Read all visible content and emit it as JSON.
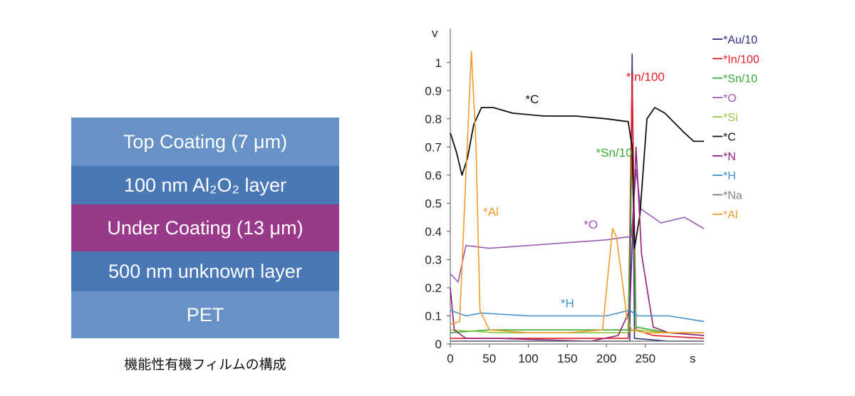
{
  "diagram": {
    "layers": [
      {
        "label": "Top Coating (7 μm)",
        "color": "#6792c6"
      },
      {
        "label": "100 nm Al₂O₂ layer",
        "color": "#4a78b7"
      },
      {
        "label": "Under Coating (13 μm)",
        "color": "#99398a"
      },
      {
        "label": "500 nm unknown layer",
        "color": "#4a78b7"
      },
      {
        "label": "PET",
        "color": "#6792c6"
      }
    ],
    "caption": "機能性有機フィルムの構成"
  },
  "chart_data": {
    "type": "line",
    "xlabel": "s",
    "ylabel": "v",
    "xlim": [
      0,
      325
    ],
    "ylim": [
      0,
      1.05
    ],
    "xticks": [
      0,
      50,
      100,
      150,
      200,
      250
    ],
    "yticks": [
      0,
      0.1,
      0.2,
      0.3,
      0.4,
      0.5,
      0.6,
      0.7,
      0.8,
      0.9,
      1
    ],
    "series": [
      {
        "name": "*Au/10",
        "color": "#2d2e83",
        "points": [
          [
            0,
            0.01
          ],
          [
            100,
            0.01
          ],
          [
            200,
            0.01
          ],
          [
            230,
            0.01
          ],
          [
            233,
            1.03
          ],
          [
            236,
            0.02
          ],
          [
            280,
            0.01
          ],
          [
            325,
            0.01
          ]
        ]
      },
      {
        "name": "*In/100",
        "color": "#e41e26",
        "points": [
          [
            0,
            0.02
          ],
          [
            150,
            0.02
          ],
          [
            228,
            0.02
          ],
          [
            233,
            0.95
          ],
          [
            238,
            0.05
          ],
          [
            260,
            0.03
          ],
          [
            325,
            0.02
          ]
        ]
      },
      {
        "name": "*Sn/10",
        "color": "#3aaa35",
        "points": [
          [
            0,
            0.04
          ],
          [
            50,
            0.05
          ],
          [
            150,
            0.05
          ],
          [
            228,
            0.05
          ],
          [
            233,
            0.7
          ],
          [
            238,
            0.06
          ],
          [
            280,
            0.04
          ],
          [
            325,
            0.04
          ]
        ]
      },
      {
        "name": "*O",
        "color": "#9b59b6",
        "points": [
          [
            0,
            0.25
          ],
          [
            10,
            0.22
          ],
          [
            20,
            0.35
          ],
          [
            50,
            0.34
          ],
          [
            100,
            0.35
          ],
          [
            150,
            0.36
          ],
          [
            200,
            0.37
          ],
          [
            225,
            0.38
          ],
          [
            232,
            0.38
          ],
          [
            238,
            0.62
          ],
          [
            244,
            0.48
          ],
          [
            270,
            0.43
          ],
          [
            300,
            0.45
          ],
          [
            325,
            0.41
          ]
        ]
      },
      {
        "name": "*Si",
        "color": "#8dc63f",
        "points": [
          [
            0,
            0.05
          ],
          [
            60,
            0.04
          ],
          [
            150,
            0.04
          ],
          [
            225,
            0.04
          ],
          [
            235,
            0.05
          ],
          [
            280,
            0.04
          ],
          [
            325,
            0.03
          ]
        ]
      },
      {
        "name": "*C",
        "color": "#111111",
        "points": [
          [
            0,
            0.75
          ],
          [
            8,
            0.68
          ],
          [
            15,
            0.6
          ],
          [
            22,
            0.66
          ],
          [
            30,
            0.78
          ],
          [
            40,
            0.84
          ],
          [
            55,
            0.84
          ],
          [
            80,
            0.82
          ],
          [
            120,
            0.81
          ],
          [
            160,
            0.81
          ],
          [
            200,
            0.8
          ],
          [
            228,
            0.79
          ],
          [
            233,
            0.7
          ],
          [
            236,
            0.34
          ],
          [
            243,
            0.46
          ],
          [
            252,
            0.8
          ],
          [
            262,
            0.84
          ],
          [
            275,
            0.82
          ],
          [
            300,
            0.75
          ],
          [
            312,
            0.72
          ],
          [
            325,
            0.72
          ]
        ]
      },
      {
        "name": "*N",
        "color": "#8e1f78",
        "points": [
          [
            0,
            0.2
          ],
          [
            5,
            0.05
          ],
          [
            20,
            0.02
          ],
          [
            60,
            0.02
          ],
          [
            180,
            0.01
          ],
          [
            215,
            0.03
          ],
          [
            230,
            0.12
          ],
          [
            238,
            0.7
          ],
          [
            245,
            0.32
          ],
          [
            260,
            0.06
          ],
          [
            280,
            0.04
          ],
          [
            325,
            0.03
          ]
        ]
      },
      {
        "name": "*H",
        "color": "#3d8fd0",
        "points": [
          [
            0,
            0.12
          ],
          [
            20,
            0.1
          ],
          [
            40,
            0.11
          ],
          [
            100,
            0.1
          ],
          [
            150,
            0.1
          ],
          [
            200,
            0.1
          ],
          [
            230,
            0.12
          ],
          [
            240,
            0.1
          ],
          [
            280,
            0.1
          ],
          [
            325,
            0.08
          ]
        ]
      },
      {
        "name": "*Na",
        "color": "#7f7f7f",
        "points": [
          [
            0,
            0.01
          ],
          [
            325,
            0.01
          ]
        ]
      },
      {
        "name": "*Al",
        "color": "#f39a2b",
        "points": [
          [
            0,
            0.07
          ],
          [
            12,
            0.08
          ],
          [
            20,
            0.6
          ],
          [
            27,
            1.04
          ],
          [
            33,
            0.7
          ],
          [
            38,
            0.12
          ],
          [
            50,
            0.05
          ],
          [
            100,
            0.04
          ],
          [
            150,
            0.04
          ],
          [
            195,
            0.05
          ],
          [
            208,
            0.41
          ],
          [
            213,
            0.38
          ],
          [
            226,
            0.1
          ],
          [
            232,
            0.05
          ],
          [
            250,
            0.04
          ],
          [
            325,
            0.04
          ]
        ]
      }
    ],
    "annotations": [
      {
        "text": "*C",
        "x": 105,
        "y": 0.855,
        "color": "#111111"
      },
      {
        "text": "*In/100",
        "x": 250,
        "y": 0.935,
        "color": "#e41e26"
      },
      {
        "text": "*Sn/10",
        "x": 210,
        "y": 0.665,
        "color": "#3aaa35"
      },
      {
        "text": "*Al",
        "x": 52,
        "y": 0.455,
        "color": "#f39a2b"
      },
      {
        "text": "*O",
        "x": 180,
        "y": 0.41,
        "color": "#9b59b6"
      },
      {
        "text": "*H",
        "x": 150,
        "y": 0.13,
        "color": "#3d8fd0"
      }
    ]
  }
}
